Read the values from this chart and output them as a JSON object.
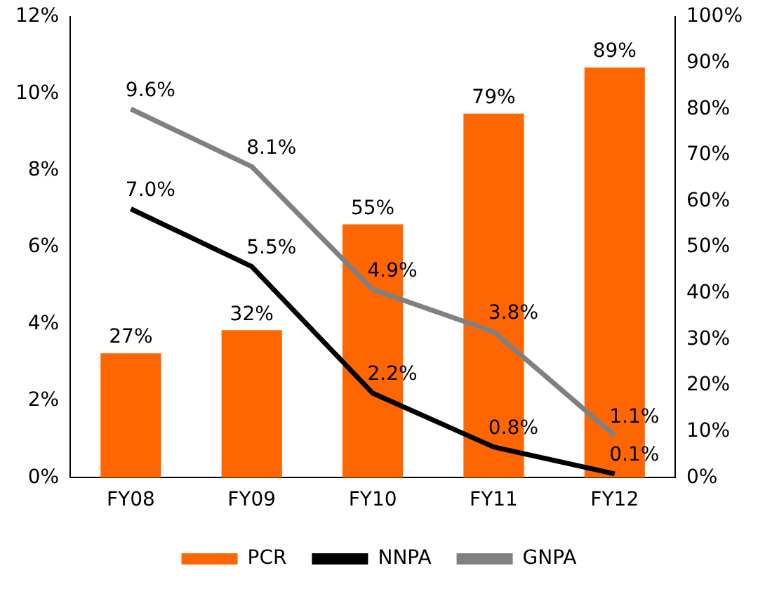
{
  "chart_data": {
    "type": "bar",
    "categories": [
      "FY08",
      "FY09",
      "FY10",
      "FY11",
      "FY12"
    ],
    "series": [
      {
        "name": "PCR",
        "axis": "y2",
        "color": "#ff6600",
        "values": [
          27,
          32,
          55,
          79,
          89
        ],
        "value_labels": [
          "27%",
          "32%",
          "55%",
          "79%",
          "89%"
        ]
      },
      {
        "name": "NNPA",
        "type": "line",
        "color": "#000000",
        "values": [
          7.0,
          5.5,
          2.2,
          0.8,
          0.1
        ],
        "value_labels": [
          "7.0%",
          "5.5%",
          "2.2%",
          "0.8%",
          "0.1%"
        ]
      },
      {
        "name": "GNPA",
        "type": "line",
        "color": "#808080",
        "values": [
          9.6,
          8.1,
          4.9,
          3.8,
          1.1
        ],
        "value_labels": [
          "9.6%",
          "8.1%",
          "4.9%",
          "3.8%",
          "1.1%"
        ]
      }
    ],
    "ylim": [
      0,
      12
    ],
    "yticks": [
      {
        "value": 0,
        "label": "0%"
      },
      {
        "value": 2,
        "label": "2%"
      },
      {
        "value": 4,
        "label": "4%"
      },
      {
        "value": 6,
        "label": "6%"
      },
      {
        "value": 8,
        "label": "8%"
      },
      {
        "value": 10,
        "label": "10%"
      },
      {
        "value": 12,
        "label": "12%"
      }
    ],
    "y2lim": [
      0,
      100
    ],
    "y2ticks": [
      {
        "value": 0,
        "label": "0%"
      },
      {
        "value": 10,
        "label": "10%"
      },
      {
        "value": 20,
        "label": "20%"
      },
      {
        "value": 30,
        "label": "30%"
      },
      {
        "value": 40,
        "label": "40%"
      },
      {
        "value": 50,
        "label": "50%"
      },
      {
        "value": 60,
        "label": "60%"
      },
      {
        "value": 70,
        "label": "70%"
      },
      {
        "value": 80,
        "label": "80%"
      },
      {
        "value": 90,
        "label": "90%"
      },
      {
        "value": 100,
        "label": "100%"
      }
    ],
    "grid": false,
    "legend": "bottom",
    "marker": "none",
    "line_style": "solid"
  }
}
